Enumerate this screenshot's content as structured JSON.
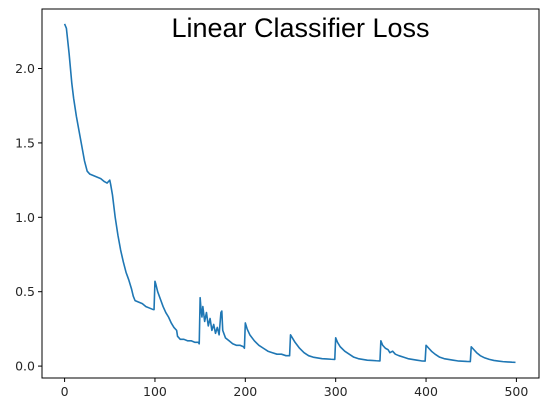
{
  "chart_data": {
    "type": "line",
    "title": "Linear Classifier Loss",
    "xlabel": "",
    "ylabel": "",
    "xlim": [
      -25,
      525
    ],
    "ylim": [
      -0.08,
      2.4
    ],
    "x_ticks": [
      0,
      100,
      200,
      300,
      400,
      500
    ],
    "y_ticks": [
      0.0,
      0.5,
      1.0,
      1.5,
      2.0
    ],
    "x_tick_labels": [
      "0",
      "100",
      "200",
      "300",
      "400",
      "500"
    ],
    "y_tick_labels": [
      "0.0",
      "0.5",
      "1.0",
      "1.5",
      "2.0"
    ],
    "grid": false,
    "legend": "none",
    "series": [
      {
        "color": "#1f77b4",
        "points": [
          [
            0,
            2.3
          ],
          [
            2,
            2.27
          ],
          [
            5,
            2.1
          ],
          [
            8,
            1.9
          ],
          [
            10,
            1.8
          ],
          [
            13,
            1.68
          ],
          [
            16,
            1.58
          ],
          [
            19,
            1.48
          ],
          [
            22,
            1.38
          ],
          [
            25,
            1.31
          ],
          [
            28,
            1.29
          ],
          [
            32,
            1.28
          ],
          [
            36,
            1.27
          ],
          [
            40,
            1.26
          ],
          [
            44,
            1.24
          ],
          [
            47,
            1.23
          ],
          [
            50,
            1.25
          ],
          [
            51,
            1.22
          ],
          [
            53,
            1.15
          ],
          [
            56,
            1.0
          ],
          [
            59,
            0.88
          ],
          [
            62,
            0.78
          ],
          [
            65,
            0.7
          ],
          [
            68,
            0.63
          ],
          [
            71,
            0.58
          ],
          [
            74,
            0.52
          ],
          [
            76,
            0.47
          ],
          [
            78,
            0.44
          ],
          [
            82,
            0.43
          ],
          [
            86,
            0.42
          ],
          [
            90,
            0.4
          ],
          [
            94,
            0.39
          ],
          [
            98,
            0.38
          ],
          [
            99,
            0.38
          ],
          [
            100,
            0.57
          ],
          [
            101,
            0.55
          ],
          [
            103,
            0.5
          ],
          [
            106,
            0.45
          ],
          [
            109,
            0.4
          ],
          [
            112,
            0.36
          ],
          [
            115,
            0.33
          ],
          [
            118,
            0.29
          ],
          [
            121,
            0.26
          ],
          [
            124,
            0.24
          ],
          [
            125,
            0.2
          ],
          [
            128,
            0.18
          ],
          [
            132,
            0.18
          ],
          [
            136,
            0.17
          ],
          [
            140,
            0.17
          ],
          [
            144,
            0.16
          ],
          [
            148,
            0.16
          ],
          [
            149,
            0.15
          ],
          [
            150,
            0.46
          ],
          [
            151,
            0.38
          ],
          [
            152,
            0.33
          ],
          [
            153,
            0.4
          ],
          [
            155,
            0.3
          ],
          [
            157,
            0.36
          ],
          [
            159,
            0.27
          ],
          [
            161,
            0.32
          ],
          [
            163,
            0.24
          ],
          [
            165,
            0.28
          ],
          [
            167,
            0.22
          ],
          [
            169,
            0.26
          ],
          [
            171,
            0.21
          ],
          [
            173,
            0.36
          ],
          [
            174,
            0.37
          ],
          [
            175,
            0.24
          ],
          [
            178,
            0.19
          ],
          [
            182,
            0.17
          ],
          [
            186,
            0.15
          ],
          [
            190,
            0.14
          ],
          [
            194,
            0.14
          ],
          [
            198,
            0.13
          ],
          [
            199,
            0.12
          ],
          [
            200,
            0.29
          ],
          [
            202,
            0.25
          ],
          [
            205,
            0.21
          ],
          [
            210,
            0.17
          ],
          [
            215,
            0.14
          ],
          [
            220,
            0.12
          ],
          [
            225,
            0.1
          ],
          [
            230,
            0.09
          ],
          [
            235,
            0.08
          ],
          [
            240,
            0.08
          ],
          [
            245,
            0.07
          ],
          [
            249,
            0.07
          ],
          [
            250,
            0.21
          ],
          [
            252,
            0.19
          ],
          [
            255,
            0.16
          ],
          [
            260,
            0.12
          ],
          [
            265,
            0.09
          ],
          [
            270,
            0.07
          ],
          [
            275,
            0.06
          ],
          [
            280,
            0.055
          ],
          [
            285,
            0.05
          ],
          [
            290,
            0.048
          ],
          [
            295,
            0.046
          ],
          [
            299,
            0.045
          ],
          [
            300,
            0.19
          ],
          [
            302,
            0.16
          ],
          [
            305,
            0.13
          ],
          [
            310,
            0.1
          ],
          [
            315,
            0.08
          ],
          [
            320,
            0.06
          ],
          [
            325,
            0.05
          ],
          [
            330,
            0.045
          ],
          [
            335,
            0.04
          ],
          [
            340,
            0.038
          ],
          [
            345,
            0.036
          ],
          [
            349,
            0.035
          ],
          [
            350,
            0.17
          ],
          [
            352,
            0.14
          ],
          [
            355,
            0.12
          ],
          [
            358,
            0.11
          ],
          [
            360,
            0.09
          ],
          [
            363,
            0.1
          ],
          [
            366,
            0.08
          ],
          [
            370,
            0.07
          ],
          [
            375,
            0.06
          ],
          [
            380,
            0.05
          ],
          [
            385,
            0.045
          ],
          [
            390,
            0.04
          ],
          [
            395,
            0.035
          ],
          [
            399,
            0.034
          ],
          [
            400,
            0.14
          ],
          [
            403,
            0.12
          ],
          [
            406,
            0.1
          ],
          [
            410,
            0.08
          ],
          [
            415,
            0.06
          ],
          [
            420,
            0.05
          ],
          [
            425,
            0.045
          ],
          [
            430,
            0.04
          ],
          [
            435,
            0.035
          ],
          [
            440,
            0.033
          ],
          [
            445,
            0.031
          ],
          [
            449,
            0.03
          ],
          [
            450,
            0.13
          ],
          [
            453,
            0.11
          ],
          [
            456,
            0.09
          ],
          [
            460,
            0.07
          ],
          [
            465,
            0.055
          ],
          [
            470,
            0.045
          ],
          [
            475,
            0.038
          ],
          [
            480,
            0.034
          ],
          [
            485,
            0.03
          ],
          [
            490,
            0.028
          ],
          [
            495,
            0.026
          ],
          [
            499,
            0.025
          ]
        ]
      }
    ]
  }
}
